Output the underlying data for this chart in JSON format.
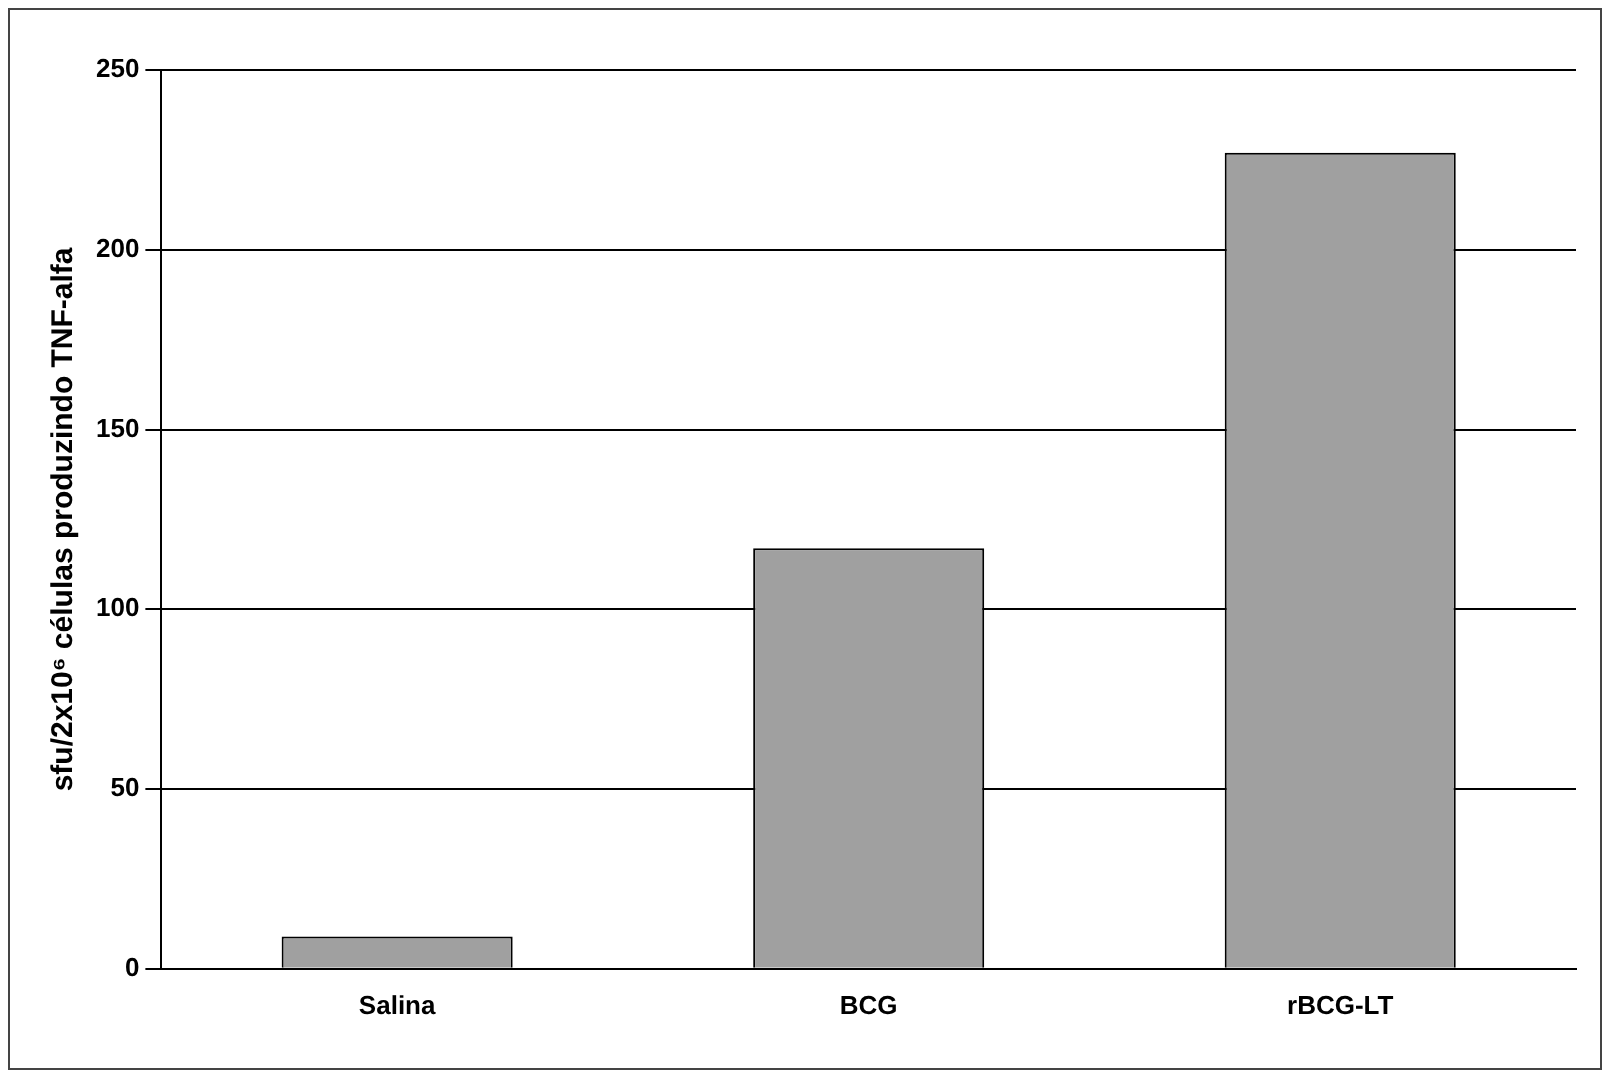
{
  "chart_data": {
    "type": "bar",
    "ylabel": "sfu/2x10⁶ células produzindo TNF-alfa",
    "categories": [
      "Salina",
      "BCG",
      "rBCG-LT"
    ],
    "values": [
      9,
      117,
      227
    ],
    "color": "#a0a0a0",
    "ylim": [
      0,
      250
    ],
    "yticks": [
      0,
      50,
      100,
      150,
      200,
      250
    ],
    "grid": "y",
    "legend": false
  }
}
